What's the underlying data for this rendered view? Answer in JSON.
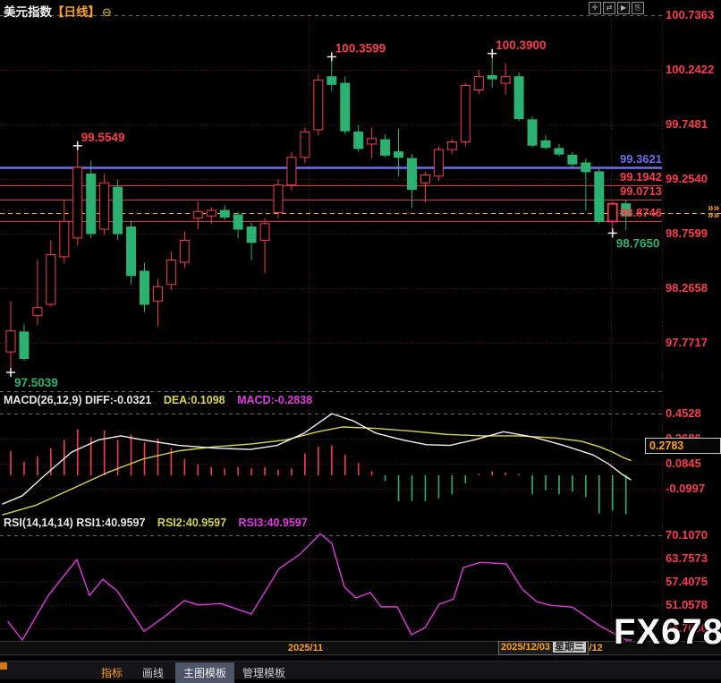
{
  "window": {
    "symbol": "美元指数",
    "period": "【日线】",
    "collapse_icon": "⊖",
    "toolbar": [
      "✛",
      "⇄",
      "▶",
      "⎘"
    ]
  },
  "axis_strip": {
    "tick1": "2025/11",
    "tick2": "2025/12",
    "tooltip_date": "2025/12/03",
    "tooltip_weekday": "星期三"
  },
  "watermark": "FX678",
  "tabs": [
    "指标",
    "画线",
    "主图模板",
    "管理模板"
  ],
  "macd_header": {
    "left": "MACD(26,12,9) DIFF:-0.0321",
    "dea": "DEA:0.1098",
    "macd": "MACD:-0.2838"
  },
  "rsi_header": {
    "left": "RSI(14,14,14) RSI1:40.9597",
    "rsi2": "RSI2:40.9597",
    "rsi3": "RSI3:40.9597"
  },
  "macd_axis_box_value": "0.2783",
  "current_price_marker": "»»",
  "colors": {
    "up": "#fb3c4c",
    "down": "#2bb270",
    "blue_line": "#6a6ef2",
    "orange": "#ffa11e",
    "dea_yellow": "#d6d64a",
    "magenta": "#e03ae0",
    "axis_red": "#fb3c4c",
    "white": "#eeeeee"
  },
  "chart_data": {
    "type": "candlestick",
    "title": "美元指数 日线",
    "price_axis_ticks": [
      "100.7363",
      "100.2422",
      "99.7481",
      "99.2540",
      "98.7599",
      "98.2658",
      "97.7717"
    ],
    "candles": [
      [
        97.69,
        98.15,
        97.5039,
        97.88
      ],
      [
        97.87,
        97.94,
        97.61,
        97.63
      ],
      [
        98.02,
        98.52,
        97.93,
        98.09
      ],
      [
        98.12,
        98.7,
        98.1,
        98.57
      ],
      [
        98.55,
        99.06,
        98.49,
        98.87
      ],
      [
        98.72,
        99.5549,
        98.65,
        99.36
      ],
      [
        99.3,
        99.42,
        98.72,
        98.76
      ],
      [
        98.8,
        99.3,
        98.75,
        99.22
      ],
      [
        99.18,
        99.25,
        98.7,
        98.76
      ],
      [
        98.82,
        98.88,
        98.3,
        98.38
      ],
      [
        98.42,
        98.5,
        98.05,
        98.12
      ],
      [
        98.15,
        98.35,
        97.92,
        98.28
      ],
      [
        98.3,
        98.6,
        98.25,
        98.52
      ],
      [
        98.5,
        98.78,
        98.45,
        98.7
      ],
      [
        98.9,
        99.05,
        98.8,
        98.96
      ],
      [
        98.92,
        99.0,
        98.85,
        98.97
      ],
      [
        98.97,
        99.02,
        98.88,
        98.91
      ],
      [
        98.93,
        98.96,
        98.72,
        98.8
      ],
      [
        98.82,
        98.86,
        98.52,
        98.68
      ],
      [
        98.7,
        98.9,
        98.4,
        98.85
      ],
      [
        98.95,
        99.25,
        98.9,
        99.2
      ],
      [
        99.2,
        99.5,
        99.15,
        99.45
      ],
      [
        99.45,
        99.72,
        99.4,
        99.68
      ],
      [
        99.7,
        100.2,
        99.65,
        100.15
      ],
      [
        100.18,
        100.3599,
        100.05,
        100.11
      ],
      [
        100.12,
        100.18,
        99.66,
        99.69
      ],
      [
        99.68,
        99.74,
        99.5,
        99.53
      ],
      [
        99.57,
        99.72,
        99.44,
        99.62
      ],
      [
        99.61,
        99.66,
        99.45,
        99.47
      ],
      [
        99.5,
        99.71,
        99.28,
        99.45
      ],
      [
        99.44,
        99.48,
        98.99,
        99.16
      ],
      [
        99.22,
        99.32,
        99.04,
        99.29
      ],
      [
        99.28,
        99.55,
        99.24,
        99.52
      ],
      [
        99.52,
        99.62,
        99.48,
        99.59
      ],
      [
        99.59,
        100.12,
        99.55,
        100.1
      ],
      [
        100.06,
        100.24,
        100.02,
        100.18
      ],
      [
        100.19,
        100.39,
        100.08,
        100.16
      ],
      [
        100.12,
        100.3,
        100.02,
        100.18
      ],
      [
        100.18,
        100.22,
        99.78,
        99.8
      ],
      [
        99.79,
        99.82,
        99.54,
        99.56
      ],
      [
        99.6,
        99.65,
        99.52,
        99.54
      ],
      [
        99.53,
        99.57,
        99.46,
        99.48
      ],
      [
        99.47,
        99.5,
        99.35,
        99.39
      ],
      [
        99.4,
        99.44,
        98.97,
        99.32
      ],
      [
        99.32,
        99.35,
        98.85,
        98.87
      ],
      [
        98.87,
        99.05,
        98.765,
        99.03
      ],
      [
        99.03,
        99.06,
        98.79,
        98.92
      ]
    ],
    "highlight_candle": 46,
    "hlines": [
      {
        "value": 99.3621,
        "label": "99.3621",
        "color": "#6a6ef2",
        "width": 2.5,
        "dash": ""
      },
      {
        "value": 99.1942,
        "label": "99.1942",
        "color": "#e03545",
        "width": 1,
        "dash": ""
      },
      {
        "value": 99.0713,
        "label": "99.0713",
        "color": "#e03545",
        "width": 1,
        "dash": ""
      },
      {
        "value": 98.8746,
        "label": "98.8746",
        "color": "#e03545",
        "width": 1,
        "dash": ""
      },
      {
        "value": 98.946,
        "label": "",
        "color": "#ffa11e",
        "width": 1,
        "dash": "5 4"
      }
    ],
    "annotations": [
      {
        "candle": 1,
        "price": 97.5039,
        "label": "97.5039",
        "color": "#2bb270",
        "side": "below"
      },
      {
        "candle": 6,
        "price": 99.5549,
        "label": "99.5549",
        "color": "#fb3c4c",
        "side": "above"
      },
      {
        "candle": 25,
        "price": 100.3599,
        "label": "100.3599",
        "color": "#fb3c4c",
        "side": "above"
      },
      {
        "candle": 37,
        "price": 100.39,
        "label": "100.3900",
        "color": "#fb3c4c",
        "side": "above"
      },
      {
        "candle": 46,
        "price": 98.765,
        "label": "98.7650",
        "color": "#2bb270",
        "side": "below"
      }
    ],
    "macd": {
      "params": "(26,12,9)",
      "diff": -0.0321,
      "dea": 0.1098,
      "macd": -0.2838,
      "axis_ticks": [
        "0.4528",
        "0.2686",
        "0.0845",
        "-0.0997"
      ],
      "axis_tick_values": [
        0.4528,
        0.2686,
        0.0845,
        -0.0997
      ],
      "crosshair_value": 0.2783,
      "histogram": [
        0.18,
        0.1,
        0.14,
        0.2,
        0.26,
        0.34,
        0.28,
        0.33,
        0.26,
        0.3,
        0.24,
        0.27,
        0.2,
        0.12,
        0.08,
        0.06,
        0.05,
        0.06,
        0.05,
        0.06,
        0.04,
        0.05,
        0.16,
        0.21,
        0.22,
        0.15,
        0.09,
        0.03,
        -0.04,
        -0.19,
        -0.19,
        -0.19,
        -0.17,
        -0.14,
        -0.06,
        0.01,
        0.03,
        0.02,
        0.01,
        -0.14,
        -0.11,
        -0.14,
        -0.12,
        -0.16,
        -0.28,
        -0.26,
        -0.2838
      ],
      "diff_line": [
        [
          3,
          -0.21
        ],
        [
          25,
          -0.15
        ],
        [
          50,
          0.0
        ],
        [
          80,
          0.17
        ],
        [
          110,
          0.26
        ],
        [
          135,
          0.29
        ],
        [
          160,
          0.26
        ],
        [
          200,
          0.22
        ],
        [
          240,
          0.2
        ],
        [
          280,
          0.19
        ],
        [
          310,
          0.22
        ],
        [
          340,
          0.31
        ],
        [
          371,
          0.4528
        ],
        [
          395,
          0.4
        ],
        [
          420,
          0.31
        ],
        [
          450,
          0.26
        ],
        [
          477,
          0.225
        ],
        [
          503,
          0.22
        ],
        [
          530,
          0.26
        ],
        [
          563,
          0.32
        ],
        [
          580,
          0.3
        ],
        [
          597,
          0.28
        ],
        [
          630,
          0.22
        ],
        [
          663,
          0.15
        ],
        [
          680,
          0.085
        ],
        [
          695,
          0.01
        ],
        [
          705,
          -0.0321
        ]
      ],
      "dea_line": [
        [
          3,
          -0.29
        ],
        [
          40,
          -0.22
        ],
        [
          80,
          -0.1
        ],
        [
          120,
          0.02
        ],
        [
          160,
          0.12
        ],
        [
          200,
          0.18
        ],
        [
          240,
          0.21
        ],
        [
          280,
          0.23
        ],
        [
          320,
          0.26
        ],
        [
          355,
          0.32
        ],
        [
          383,
          0.355
        ],
        [
          420,
          0.345
        ],
        [
          460,
          0.325
        ],
        [
          500,
          0.3
        ],
        [
          540,
          0.29
        ],
        [
          580,
          0.29
        ],
        [
          620,
          0.275
        ],
        [
          650,
          0.25
        ],
        [
          670,
          0.21
        ],
        [
          685,
          0.17
        ],
        [
          697,
          0.13
        ],
        [
          705,
          0.1098
        ]
      ]
    },
    "rsi": {
      "params": "(14,14,14)",
      "rsi1": 40.9597,
      "rsi2": 40.9597,
      "rsi3": 40.9597,
      "axis_ticks": [
        "70.1070",
        "63.7573",
        "57.4075",
        "51.0578",
        "44.7080"
      ],
      "axis_tick_values": [
        70.107,
        63.7573,
        57.4075,
        51.0578,
        44.708
      ],
      "line": [
        [
          9,
          46.5
        ],
        [
          25,
          41.3
        ],
        [
          54,
          53.7
        ],
        [
          86,
          63.5
        ],
        [
          100,
          53.7
        ],
        [
          115,
          58.1
        ],
        [
          131,
          54.9
        ],
        [
          161,
          43.9
        ],
        [
          186,
          48.3
        ],
        [
          206,
          52.3
        ],
        [
          222,
          51.1
        ],
        [
          247,
          51.5
        ],
        [
          281,
          48.6
        ],
        [
          312,
          61.0
        ],
        [
          335,
          64.9
        ],
        [
          358,
          70.5
        ],
        [
          371,
          67.9
        ],
        [
          385,
          56.0
        ],
        [
          398,
          53.0
        ],
        [
          414,
          54.5
        ],
        [
          426,
          50.6
        ],
        [
          444,
          50.6
        ],
        [
          460,
          43.0
        ],
        [
          475,
          44.9
        ],
        [
          491,
          51.3
        ],
        [
          507,
          52.7
        ],
        [
          518,
          61.3
        ],
        [
          537,
          62.7
        ],
        [
          566,
          62.3
        ],
        [
          584,
          55.4
        ],
        [
          600,
          52.0
        ],
        [
          615,
          51.0
        ],
        [
          640,
          50.5
        ],
        [
          655,
          48.0
        ],
        [
          670,
          45.5
        ],
        [
          685,
          43.5
        ],
        [
          700,
          41.0
        ],
        [
          706,
          40.9597
        ]
      ]
    },
    "x_gridlines": [
      345,
      683,
      740
    ]
  }
}
